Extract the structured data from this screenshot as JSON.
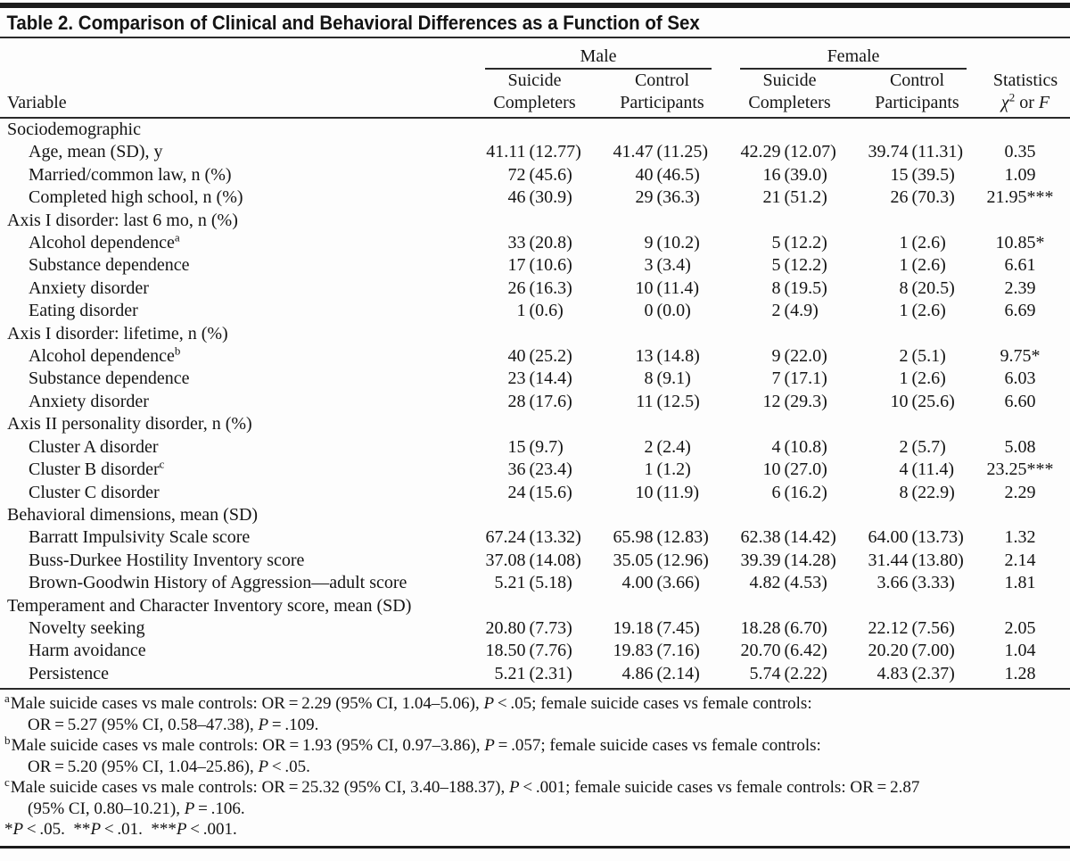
{
  "title": "Table 2. Comparison of Clinical and Behavioral Differences as a Function of Sex",
  "header": {
    "variable": "Variable",
    "male": "Male",
    "female": "Female",
    "suicide": "Suicide Completers",
    "control": "Control Participants",
    "stats_line1": "Statistics",
    "chi": "χ",
    "chi_sup": "2",
    "or_text": " or ",
    "f": "F"
  },
  "rows": [
    {
      "label": "Sociodemographic",
      "indent": false,
      "sup": "",
      "values": [
        "",
        "",
        "",
        "",
        ""
      ]
    },
    {
      "label": "Age, mean (SD), y",
      "indent": true,
      "sup": "",
      "values": [
        "41.11 (12.77)",
        "41.47 (11.25)",
        "42.29 (12.07)",
        "39.74 (11.31)",
        "0.35"
      ]
    },
    {
      "label": "Married/common law, n (%)",
      "indent": true,
      "sup": "",
      "values": [
        "72 (45.6)",
        "40 (46.5)",
        "16 (39.0)",
        "15 (39.5)",
        "1.09"
      ]
    },
    {
      "label": "Completed high school, n (%)",
      "indent": true,
      "sup": "",
      "values": [
        "46 (30.9)",
        "29 (36.3)",
        "21 (51.2)",
        "26 (70.3)",
        "21.95***"
      ]
    },
    {
      "label": "Axis I disorder: last 6 mo, n (%)",
      "indent": false,
      "sup": "",
      "values": [
        "",
        "",
        "",
        "",
        ""
      ]
    },
    {
      "label": "Alcohol dependence",
      "indent": true,
      "sup": "a",
      "values": [
        "33 (20.8)",
        "9 (10.2)",
        "5 (12.2)",
        "1 (2.6)",
        "10.85*"
      ]
    },
    {
      "label": "Substance dependence",
      "indent": true,
      "sup": "",
      "values": [
        "17 (10.6)",
        "3 (3.4)",
        "5 (12.2)",
        "1 (2.6)",
        "6.61"
      ]
    },
    {
      "label": "Anxiety disorder",
      "indent": true,
      "sup": "",
      "values": [
        "26 (16.3)",
        "10 (11.4)",
        "8 (19.5)",
        "8 (20.5)",
        "2.39"
      ]
    },
    {
      "label": "Eating disorder",
      "indent": true,
      "sup": "",
      "values": [
        "1 (0.6)",
        "0 (0.0)",
        "2 (4.9)",
        "1 (2.6)",
        "6.69"
      ]
    },
    {
      "label": "Axis I disorder: lifetime, n (%)",
      "indent": false,
      "sup": "",
      "values": [
        "",
        "",
        "",
        "",
        ""
      ]
    },
    {
      "label": "Alcohol dependence",
      "indent": true,
      "sup": "b",
      "values": [
        "40 (25.2)",
        "13 (14.8)",
        "9 (22.0)",
        "2 (5.1)",
        "9.75*"
      ]
    },
    {
      "label": "Substance dependence",
      "indent": true,
      "sup": "",
      "values": [
        "23 (14.4)",
        "8 (9.1)",
        "7 (17.1)",
        "1 (2.6)",
        "6.03"
      ]
    },
    {
      "label": "Anxiety disorder",
      "indent": true,
      "sup": "",
      "values": [
        "28 (17.6)",
        "11 (12.5)",
        "12 (29.3)",
        "10 (25.6)",
        "6.60"
      ]
    },
    {
      "label": "Axis II personality disorder, n (%)",
      "indent": false,
      "sup": "",
      "values": [
        "",
        "",
        "",
        "",
        ""
      ]
    },
    {
      "label": "Cluster A disorder",
      "indent": true,
      "sup": "",
      "values": [
        "15 (9.7)",
        "2 (2.4)",
        "4 (10.8)",
        "2 (5.7)",
        "5.08"
      ]
    },
    {
      "label": "Cluster B disorder",
      "indent": true,
      "sup": "c",
      "values": [
        "36 (23.4)",
        "1 (1.2)",
        "10 (27.0)",
        "4 (11.4)",
        "23.25***"
      ]
    },
    {
      "label": "Cluster C disorder",
      "indent": true,
      "sup": "",
      "values": [
        "24 (15.6)",
        "10 (11.9)",
        "6 (16.2)",
        "8 (22.9)",
        "2.29"
      ]
    },
    {
      "label": "Behavioral dimensions, mean (SD)",
      "indent": false,
      "sup": "",
      "values": [
        "",
        "",
        "",
        "",
        ""
      ]
    },
    {
      "label": "Barratt Impulsivity Scale score",
      "indent": true,
      "sup": "",
      "values": [
        "67.24 (13.32)",
        "65.98 (12.83)",
        "62.38 (14.42)",
        "64.00 (13.73)",
        "1.32"
      ]
    },
    {
      "label": "Buss-Durkee Hostility Inventory score",
      "indent": true,
      "sup": "",
      "values": [
        "37.08 (14.08)",
        "35.05 (12.96)",
        "39.39 (14.28)",
        "31.44 (13.80)",
        "2.14"
      ]
    },
    {
      "label": "Brown-Goodwin History of Aggression—adult score",
      "indent": true,
      "sup": "",
      "values": [
        "5.21 (5.18)",
        "4.00 (3.66)",
        "4.82 (4.53)",
        "3.66 (3.33)",
        "1.81"
      ]
    },
    {
      "label": "Temperament and Character Inventory score, mean (SD)",
      "indent": false,
      "sup": "",
      "values": [
        "",
        "",
        "",
        "",
        ""
      ]
    },
    {
      "label": "Novelty seeking",
      "indent": true,
      "sup": "",
      "values": [
        "20.80 (7.73)",
        "19.18 (7.45)",
        "18.28 (6.70)",
        "22.12 (7.56)",
        "2.05"
      ]
    },
    {
      "label": "Harm avoidance",
      "indent": true,
      "sup": "",
      "values": [
        "18.50 (7.76)",
        "19.83 (7.16)",
        "20.70 (6.42)",
        "20.20 (7.00)",
        "1.04"
      ]
    },
    {
      "label": "Persistence",
      "indent": true,
      "sup": "",
      "values": [
        "5.21 (2.31)",
        "4.86 (2.14)",
        "5.74 (2.22)",
        "4.83 (2.37)",
        "1.28"
      ]
    }
  ],
  "footnotes": [
    {
      "marker": "a",
      "indent": false,
      "segments": [
        {
          "t": "Male suicide cases vs male controls: OR = 2.29 (95% CI, 1.04–5.06), "
        },
        {
          "t": "P",
          "i": 1
        },
        {
          "t": " < .05; female suicide cases vs female controls:"
        }
      ]
    },
    {
      "marker": "",
      "indent": true,
      "segments": [
        {
          "t": "OR = 5.27 (95% CI, 0.58–47.38), "
        },
        {
          "t": "P",
          "i": 1
        },
        {
          "t": " = .109."
        }
      ]
    },
    {
      "marker": "b",
      "indent": false,
      "segments": [
        {
          "t": "Male suicide cases vs male controls: OR = 1.93 (95% CI, 0.97–3.86), "
        },
        {
          "t": "P",
          "i": 1
        },
        {
          "t": " = .057; female suicide cases vs female controls:"
        }
      ]
    },
    {
      "marker": "",
      "indent": true,
      "segments": [
        {
          "t": "OR = 5.20 (95% CI, 1.04–25.86), "
        },
        {
          "t": "P",
          "i": 1
        },
        {
          "t": " < .05."
        }
      ]
    },
    {
      "marker": "c",
      "indent": false,
      "segments": [
        {
          "t": "Male suicide cases vs male controls: OR = 25.32 (95% CI, 3.40–188.37), "
        },
        {
          "t": "P",
          "i": 1
        },
        {
          "t": " < .001; female suicide cases vs female controls: OR = 2.87"
        }
      ]
    },
    {
      "marker": "",
      "indent": true,
      "segments": [
        {
          "t": "(95% CI, 0.80–10.21), "
        },
        {
          "t": "P",
          "i": 1
        },
        {
          "t": " = .106."
        }
      ]
    },
    {
      "marker": "",
      "indent": false,
      "segments": [
        {
          "t": "*"
        },
        {
          "t": "P",
          "i": 1
        },
        {
          "t": " < .05.  **"
        },
        {
          "t": "P",
          "i": 1
        },
        {
          "t": " < .01.  ***"
        },
        {
          "t": "P",
          "i": 1
        },
        {
          "t": " < .001."
        }
      ]
    }
  ]
}
